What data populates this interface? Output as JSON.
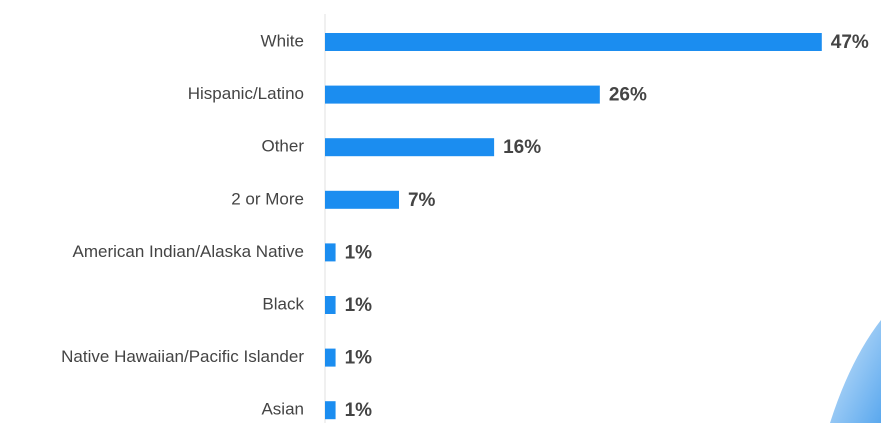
{
  "chart_data": {
    "type": "bar",
    "orientation": "horizontal",
    "categories": [
      "White",
      "Hispanic/Latino",
      "Other",
      "2 or More",
      "American Indian/Alaska Native",
      "Black",
      "Native Hawaiian/Pacific Islander",
      "Asian"
    ],
    "values": [
      47,
      26,
      16,
      7,
      1,
      1,
      1,
      1
    ],
    "value_labels": [
      "47%",
      "26%",
      "16%",
      "7%",
      "1%",
      "1%",
      "1%",
      "1%"
    ],
    "color": "#1b8df0"
  }
}
